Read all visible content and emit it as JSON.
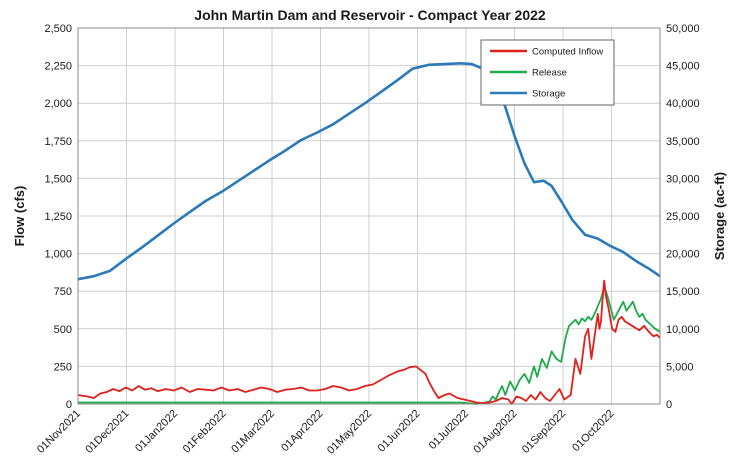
{
  "chart_data": {
    "type": "line",
    "title": "John Martin Dam and Reservoir - Compact Year 2022",
    "ylabel": "Flow (cfs)",
    "y2label": "Storage (ac-ft)",
    "ylim": [
      0,
      2500
    ],
    "y2lim": [
      0,
      50000
    ],
    "yticks": [
      "0",
      "250",
      "500",
      "750",
      "1,000",
      "1,250",
      "1,500",
      "1,750",
      "2,000",
      "2,250",
      "2,500"
    ],
    "y2ticks": [
      "0",
      "5,000",
      "10,000",
      "15,000",
      "20,000",
      "25,000",
      "30,000",
      "35,000",
      "40,000",
      "45,000",
      "50,000"
    ],
    "xticks": [
      "01Nov2021",
      "01Dec2021",
      "01Jan2022",
      "01Feb2022",
      "01Mar2022",
      "01Apr2022",
      "01May2022",
      "01Jun2022",
      "01Jul2022",
      "01Aug2022",
      "01Sep2022",
      "01Oct2022"
    ],
    "x_range_days": [
      0,
      365
    ],
    "grid": true,
    "legend_position": "top-right",
    "colors": {
      "inflow": "#e0201b",
      "release": "#1faa4b",
      "storage": "#2a7ab8"
    },
    "series": [
      {
        "name": "Computed Inflow",
        "axis": "left",
        "key": "inflow",
        "points": [
          [
            0,
            60
          ],
          [
            6,
            50
          ],
          [
            10,
            40
          ],
          [
            14,
            70
          ],
          [
            18,
            80
          ],
          [
            22,
            100
          ],
          [
            26,
            85
          ],
          [
            30,
            110
          ],
          [
            34,
            90
          ],
          [
            38,
            120
          ],
          [
            42,
            95
          ],
          [
            46,
            105
          ],
          [
            50,
            85
          ],
          [
            55,
            100
          ],
          [
            60,
            90
          ],
          [
            65,
            110
          ],
          [
            70,
            80
          ],
          [
            75,
            100
          ],
          [
            80,
            95
          ],
          [
            85,
            90
          ],
          [
            90,
            110
          ],
          [
            95,
            90
          ],
          [
            100,
            100
          ],
          [
            105,
            80
          ],
          [
            110,
            95
          ],
          [
            115,
            110
          ],
          [
            120,
            100
          ],
          [
            125,
            80
          ],
          [
            130,
            95
          ],
          [
            135,
            100
          ],
          [
            140,
            110
          ],
          [
            145,
            90
          ],
          [
            150,
            90
          ],
          [
            155,
            100
          ],
          [
            160,
            120
          ],
          [
            165,
            110
          ],
          [
            170,
            90
          ],
          [
            175,
            100
          ],
          [
            180,
            120
          ],
          [
            185,
            130
          ],
          [
            190,
            160
          ],
          [
            195,
            190
          ],
          [
            200,
            215
          ],
          [
            205,
            230
          ],
          [
            208,
            245
          ],
          [
            212,
            250
          ],
          [
            215,
            225
          ],
          [
            218,
            200
          ],
          [
            220,
            150
          ],
          [
            223,
            90
          ],
          [
            226,
            40
          ],
          [
            230,
            60
          ],
          [
            233,
            70
          ],
          [
            238,
            40
          ],
          [
            242,
            30
          ],
          [
            246,
            20
          ],
          [
            250,
            10
          ],
          [
            254,
            5
          ],
          [
            258,
            10
          ],
          [
            262,
            20
          ],
          [
            266,
            40
          ],
          [
            270,
            30
          ],
          [
            272,
            0
          ],
          [
            275,
            50
          ],
          [
            278,
            40
          ],
          [
            281,
            20
          ],
          [
            284,
            60
          ],
          [
            287,
            30
          ],
          [
            290,
            80
          ],
          [
            293,
            40
          ],
          [
            296,
            20
          ],
          [
            299,
            60
          ],
          [
            302,
            100
          ],
          [
            305,
            30
          ],
          [
            309,
            60
          ],
          [
            312,
            300
          ],
          [
            315,
            200
          ],
          [
            318,
            450
          ],
          [
            320,
            500
          ],
          [
            322,
            300
          ],
          [
            324,
            450
          ],
          [
            326,
            600
          ],
          [
            327,
            500
          ],
          [
            328,
            550
          ],
          [
            329,
            700
          ],
          [
            330,
            820
          ],
          [
            331,
            720
          ],
          [
            333,
            620
          ],
          [
            335,
            500
          ],
          [
            337,
            480
          ],
          [
            339,
            560
          ],
          [
            341,
            580
          ],
          [
            343,
            550
          ],
          [
            346,
            530
          ],
          [
            349,
            510
          ],
          [
            352,
            490
          ],
          [
            355,
            520
          ],
          [
            358,
            480
          ],
          [
            361,
            450
          ],
          [
            363,
            460
          ],
          [
            365,
            440
          ]
        ]
      },
      {
        "name": "Release",
        "axis": "left",
        "key": "release",
        "points": [
          [
            0,
            10
          ],
          [
            30,
            10
          ],
          [
            60,
            10
          ],
          [
            90,
            10
          ],
          [
            120,
            10
          ],
          [
            150,
            10
          ],
          [
            180,
            10
          ],
          [
            210,
            10
          ],
          [
            240,
            10
          ],
          [
            250,
            0
          ],
          [
            258,
            15
          ],
          [
            260,
            50
          ],
          [
            262,
            30
          ],
          [
            264,
            80
          ],
          [
            266,
            120
          ],
          [
            268,
            60
          ],
          [
            271,
            150
          ],
          [
            274,
            90
          ],
          [
            277,
            160
          ],
          [
            280,
            200
          ],
          [
            283,
            140
          ],
          [
            286,
            250
          ],
          [
            288,
            180
          ],
          [
            291,
            300
          ],
          [
            294,
            240
          ],
          [
            297,
            350
          ],
          [
            300,
            300
          ],
          [
            303,
            280
          ],
          [
            306,
            450
          ],
          [
            308,
            520
          ],
          [
            310,
            540
          ],
          [
            312,
            560
          ],
          [
            314,
            530
          ],
          [
            316,
            570
          ],
          [
            318,
            550
          ],
          [
            320,
            580
          ],
          [
            322,
            560
          ],
          [
            324,
            600
          ],
          [
            326,
            650
          ],
          [
            328,
            700
          ],
          [
            330,
            780
          ],
          [
            332,
            720
          ],
          [
            334,
            640
          ],
          [
            336,
            560
          ],
          [
            338,
            600
          ],
          [
            340,
            640
          ],
          [
            342,
            680
          ],
          [
            344,
            620
          ],
          [
            346,
            650
          ],
          [
            348,
            680
          ],
          [
            350,
            620
          ],
          [
            352,
            580
          ],
          [
            354,
            600
          ],
          [
            356,
            560
          ],
          [
            358,
            540
          ],
          [
            360,
            520
          ],
          [
            362,
            500
          ],
          [
            365,
            480
          ]
        ]
      },
      {
        "name": "Storage",
        "axis": "right",
        "key": "storage",
        "points": [
          [
            0,
            16600
          ],
          [
            10,
            17000
          ],
          [
            20,
            17700
          ],
          [
            30,
            19300
          ],
          [
            40,
            20800
          ],
          [
            50,
            22400
          ],
          [
            60,
            24000
          ],
          [
            70,
            25500
          ],
          [
            80,
            27000
          ],
          [
            90,
            28200
          ],
          [
            100,
            29600
          ],
          [
            110,
            31000
          ],
          [
            120,
            32400
          ],
          [
            130,
            33700
          ],
          [
            140,
            35100
          ],
          [
            150,
            36100
          ],
          [
            160,
            37200
          ],
          [
            170,
            38600
          ],
          [
            180,
            40000
          ],
          [
            190,
            41500
          ],
          [
            200,
            43000
          ],
          [
            210,
            44600
          ],
          [
            220,
            45100
          ],
          [
            230,
            45200
          ],
          [
            240,
            45300
          ],
          [
            247,
            45200
          ],
          [
            255,
            44500
          ],
          [
            262,
            42500
          ],
          [
            268,
            39500
          ],
          [
            274,
            35500
          ],
          [
            280,
            32000
          ],
          [
            286,
            29500
          ],
          [
            292,
            29700
          ],
          [
            297,
            29000
          ],
          [
            303,
            27000
          ],
          [
            310,
            24500
          ],
          [
            318,
            22500
          ],
          [
            326,
            22000
          ],
          [
            334,
            21000
          ],
          [
            342,
            20200
          ],
          [
            350,
            19000
          ],
          [
            358,
            18000
          ],
          [
            365,
            17000
          ]
        ]
      }
    ]
  }
}
